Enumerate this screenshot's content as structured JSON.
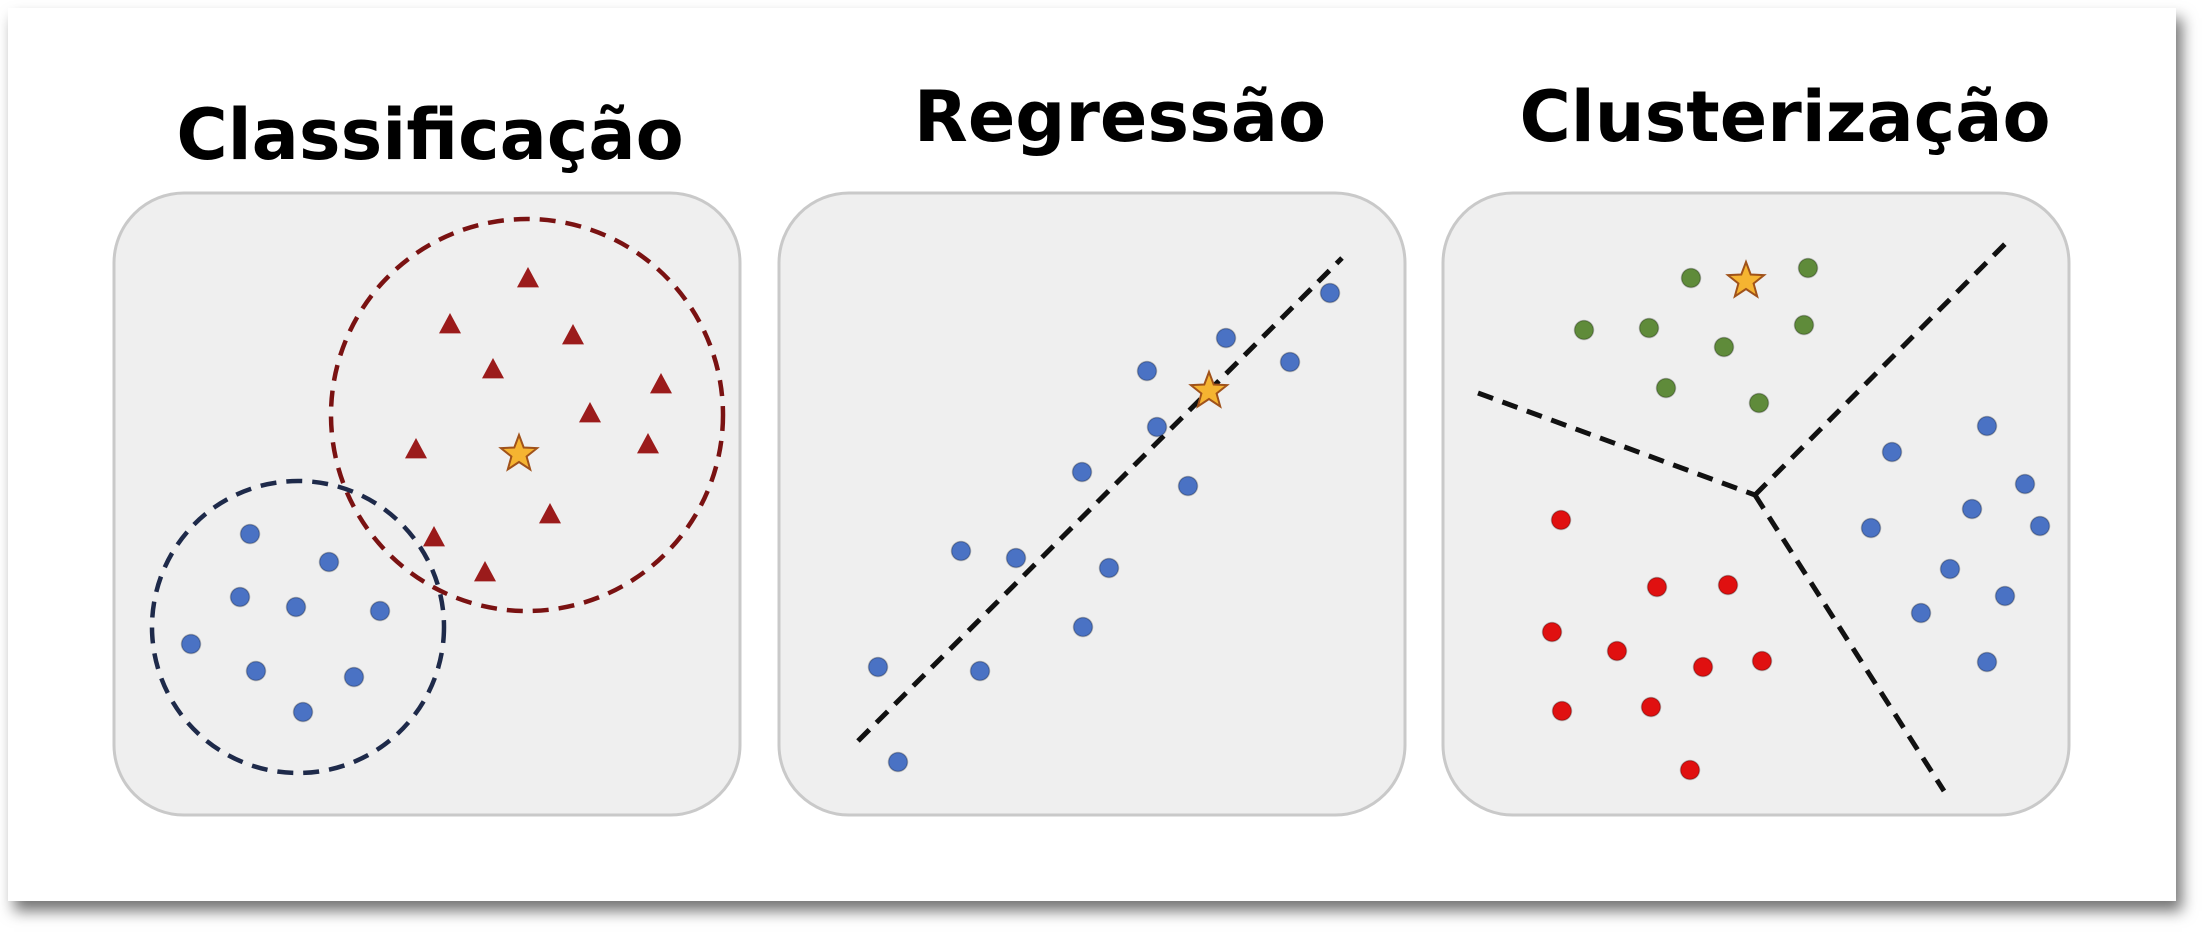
{
  "panels": [
    {
      "id": "classificacao",
      "title": "Classificação"
    },
    {
      "id": "regressao",
      "title": "Regressão"
    },
    {
      "id": "clusterizacao",
      "title": "Clusterização"
    }
  ],
  "colors": {
    "panel_fill": "#efefef",
    "panel_stroke": "#c9c9c9",
    "blue_point": "#4a72c4",
    "red_triangle": "#9b1b1b",
    "red_circle": "#7a1212",
    "navy_circle": "#1e2a4a",
    "red_point": "#e01010",
    "green_point": "#5f8b3a",
    "star": "#f5b431",
    "line": "#111111"
  },
  "icons": {
    "query_point": "star-icon",
    "class_a": "triangle-icon",
    "class_b": "circle-icon"
  }
}
